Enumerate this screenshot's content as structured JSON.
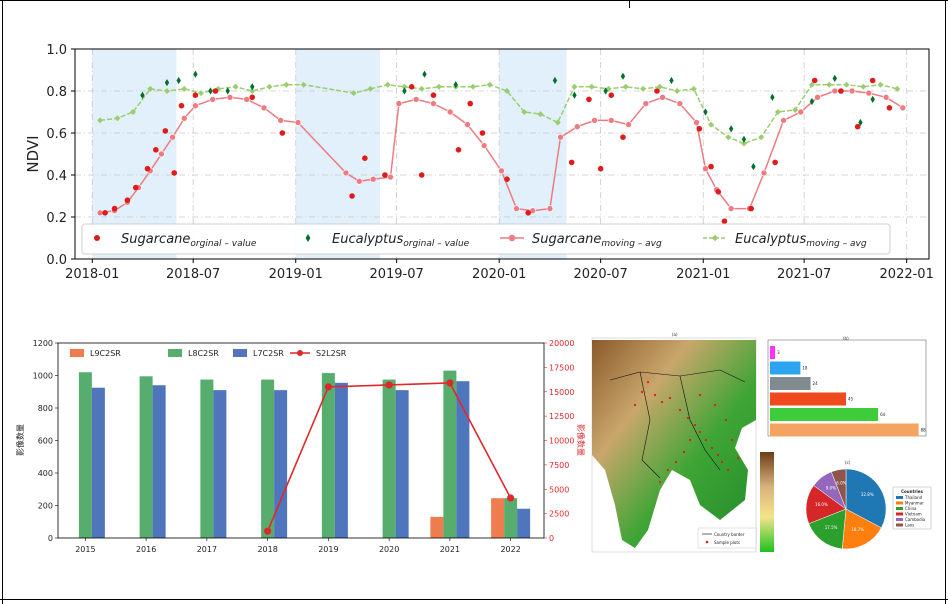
{
  "chart_data": [
    {
      "type": "line",
      "ylabel": "NDVI",
      "ylim": [
        0.0,
        1.0
      ],
      "yticks": [
        "0.0",
        "0.2",
        "0.4",
        "0.6",
        "0.8",
        "1.0"
      ],
      "xticks": [
        "2018-01",
        "2018-07",
        "2019-01",
        "2019-07",
        "2020-01",
        "2020-07",
        "2021-01",
        "2021-07",
        "2022-01"
      ],
      "grid": true,
      "legend_position": "bottom",
      "shaded_periods": [
        [
          "2018-01",
          "2018-06"
        ],
        [
          "2019-01",
          "2019-06"
        ],
        [
          "2020-01",
          "2020-05"
        ]
      ],
      "series": [
        {
          "name_main": "Sugarcane",
          "name_sub": "orginal – value",
          "marker": "circle",
          "color": "#e01b1b",
          "points": [
            [
              "2018-01-24",
              0.22
            ],
            [
              "2018-02-10",
              0.24
            ],
            [
              "2018-03-05",
              0.28
            ],
            [
              "2018-03-20",
              0.34
            ],
            [
              "2018-04-10",
              0.43
            ],
            [
              "2018-04-25",
              0.52
            ],
            [
              "2018-05-12",
              0.61
            ],
            [
              "2018-05-28",
              0.41
            ],
            [
              "2018-06-10",
              0.73
            ],
            [
              "2018-07-05",
              0.78
            ],
            [
              "2018-08-10",
              0.8
            ],
            [
              "2018-10-15",
              0.77
            ],
            [
              "2018-12-08",
              0.6
            ],
            [
              "2019-04-12",
              0.3
            ],
            [
              "2019-05-05",
              0.48
            ],
            [
              "2019-06-10",
              0.4
            ],
            [
              "2019-07-28",
              0.82
            ],
            [
              "2019-08-15",
              0.4
            ],
            [
              "2019-09-05",
              0.78
            ],
            [
              "2019-10-20",
              0.52
            ],
            [
              "2019-11-10",
              0.74
            ],
            [
              "2019-12-02",
              0.6
            ],
            [
              "2020-01-15",
              0.38
            ],
            [
              "2020-02-22",
              0.22
            ],
            [
              "2020-05-10",
              0.46
            ],
            [
              "2020-06-10",
              0.76
            ],
            [
              "2020-07-01",
              0.43
            ],
            [
              "2020-07-20",
              0.78
            ],
            [
              "2020-08-10",
              0.58
            ],
            [
              "2020-10-10",
              0.8
            ],
            [
              "2020-12-25",
              0.62
            ],
            [
              "2021-01-15",
              0.44
            ],
            [
              "2021-01-28",
              0.32
            ],
            [
              "2021-02-08",
              0.18
            ],
            [
              "2021-03-28",
              0.24
            ],
            [
              "2021-05-10",
              0.46
            ],
            [
              "2021-07-20",
              0.85
            ],
            [
              "2021-09-05",
              0.8
            ],
            [
              "2021-10-05",
              0.63
            ],
            [
              "2021-11-01",
              0.85
            ],
            [
              "2021-12-01",
              0.72
            ]
          ]
        },
        {
          "name_main": "Eucalyptus",
          "name_sub": "orginal – value",
          "marker": "diamond",
          "color": "#006f2e",
          "points": [
            [
              "2018-04-01",
              0.78
            ],
            [
              "2018-05-15",
              0.84
            ],
            [
              "2018-06-05",
              0.85
            ],
            [
              "2018-07-05",
              0.88
            ],
            [
              "2018-08-01",
              0.8
            ],
            [
              "2018-09-01",
              0.8
            ],
            [
              "2018-10-15",
              0.82
            ],
            [
              "2019-07-15",
              0.8
            ],
            [
              "2019-08-20",
              0.88
            ],
            [
              "2019-10-15",
              0.83
            ],
            [
              "2020-04-10",
              0.85
            ],
            [
              "2020-05-15",
              0.78
            ],
            [
              "2020-07-10",
              0.8
            ],
            [
              "2020-08-10",
              0.87
            ],
            [
              "2020-11-05",
              0.85
            ],
            [
              "2021-01-05",
              0.7
            ],
            [
              "2021-02-20",
              0.62
            ],
            [
              "2021-03-15",
              0.57
            ],
            [
              "2021-04-01",
              0.44
            ],
            [
              "2021-05-05",
              0.77
            ],
            [
              "2021-07-15",
              0.75
            ],
            [
              "2021-08-25",
              0.86
            ],
            [
              "2021-10-10",
              0.65
            ],
            [
              "2021-11-01",
              0.76
            ]
          ]
        },
        {
          "name_main": "Sugarcane",
          "name_sub": "moving – avg",
          "marker": "circle-line",
          "color": "#ee7b80",
          "points": [
            [
              "2018-01-15",
              0.22
            ],
            [
              "2018-02-10",
              0.23
            ],
            [
              "2018-03-05",
              0.27
            ],
            [
              "2018-03-25",
              0.34
            ],
            [
              "2018-04-15",
              0.42
            ],
            [
              "2018-05-05",
              0.5
            ],
            [
              "2018-05-25",
              0.58
            ],
            [
              "2018-06-15",
              0.67
            ],
            [
              "2018-07-05",
              0.73
            ],
            [
              "2018-08-05",
              0.76
            ],
            [
              "2018-09-05",
              0.77
            ],
            [
              "2018-10-05",
              0.76
            ],
            [
              "2018-11-05",
              0.72
            ],
            [
              "2018-12-05",
              0.66
            ],
            [
              "2019-01-05",
              0.65
            ],
            [
              "2019-04-01",
              0.41
            ],
            [
              "2019-04-25",
              0.37
            ],
            [
              "2019-05-20",
              0.38
            ],
            [
              "2019-06-20",
              0.39
            ],
            [
              "2019-07-05",
              0.74
            ],
            [
              "2019-08-05",
              0.76
            ],
            [
              "2019-09-05",
              0.74
            ],
            [
              "2019-10-05",
              0.7
            ],
            [
              "2019-11-05",
              0.64
            ],
            [
              "2019-12-05",
              0.54
            ],
            [
              "2020-01-05",
              0.42
            ],
            [
              "2020-02-01",
              0.24
            ],
            [
              "2020-03-01",
              0.23
            ],
            [
              "2020-04-01",
              0.24
            ],
            [
              "2020-04-20",
              0.58
            ],
            [
              "2020-05-20",
              0.63
            ],
            [
              "2020-06-20",
              0.66
            ],
            [
              "2020-07-20",
              0.66
            ],
            [
              "2020-08-20",
              0.64
            ],
            [
              "2020-09-20",
              0.74
            ],
            [
              "2020-10-20",
              0.77
            ],
            [
              "2020-11-20",
              0.74
            ],
            [
              "2020-12-20",
              0.65
            ],
            [
              "2021-01-05",
              0.43
            ],
            [
              "2021-01-25",
              0.33
            ],
            [
              "2021-02-20",
              0.24
            ],
            [
              "2021-03-25",
              0.24
            ],
            [
              "2021-04-20",
              0.41
            ],
            [
              "2021-05-25",
              0.66
            ],
            [
              "2021-06-25",
              0.7
            ],
            [
              "2021-07-25",
              0.77
            ],
            [
              "2021-08-25",
              0.8
            ],
            [
              "2021-09-25",
              0.8
            ],
            [
              "2021-10-25",
              0.79
            ],
            [
              "2021-11-25",
              0.77
            ],
            [
              "2021-12-25",
              0.72
            ]
          ]
        },
        {
          "name_main": "Eucalyptus",
          "name_sub": "moving – avg",
          "marker": "diamond-line",
          "color": "#9acd6d",
          "points": [
            [
              "2018-01-15",
              0.66
            ],
            [
              "2018-02-15",
              0.67
            ],
            [
              "2018-03-15",
              0.7
            ],
            [
              "2018-04-15",
              0.81
            ],
            [
              "2018-05-15",
              0.8
            ],
            [
              "2018-06-15",
              0.81
            ],
            [
              "2018-07-15",
              0.79
            ],
            [
              "2018-08-15",
              0.81
            ],
            [
              "2018-09-15",
              0.82
            ],
            [
              "2018-10-15",
              0.8
            ],
            [
              "2018-11-15",
              0.82
            ],
            [
              "2018-12-15",
              0.83
            ],
            [
              "2019-01-15",
              0.83
            ],
            [
              "2019-04-15",
              0.79
            ],
            [
              "2019-05-15",
              0.81
            ],
            [
              "2019-06-15",
              0.83
            ],
            [
              "2019-07-15",
              0.82
            ],
            [
              "2019-08-15",
              0.81
            ],
            [
              "2019-09-15",
              0.82
            ],
            [
              "2019-10-15",
              0.82
            ],
            [
              "2019-11-15",
              0.82
            ],
            [
              "2019-12-15",
              0.83
            ],
            [
              "2020-01-15",
              0.8
            ],
            [
              "2020-02-15",
              0.7
            ],
            [
              "2020-03-15",
              0.69
            ],
            [
              "2020-04-15",
              0.65
            ],
            [
              "2020-05-15",
              0.82
            ],
            [
              "2020-06-15",
              0.82
            ],
            [
              "2020-07-15",
              0.81
            ],
            [
              "2020-08-15",
              0.82
            ],
            [
              "2020-09-15",
              0.81
            ],
            [
              "2020-10-15",
              0.82
            ],
            [
              "2020-11-15",
              0.8
            ],
            [
              "2020-12-15",
              0.81
            ],
            [
              "2021-01-15",
              0.64
            ],
            [
              "2021-02-15",
              0.58
            ],
            [
              "2021-03-15",
              0.55
            ],
            [
              "2021-04-15",
              0.58
            ],
            [
              "2021-05-15",
              0.7
            ],
            [
              "2021-06-15",
              0.71
            ],
            [
              "2021-07-15",
              0.83
            ],
            [
              "2021-08-15",
              0.83
            ],
            [
              "2021-09-15",
              0.83
            ],
            [
              "2021-10-15",
              0.82
            ],
            [
              "2021-11-15",
              0.83
            ],
            [
              "2021-12-15",
              0.81
            ]
          ]
        }
      ]
    },
    {
      "type": "bar",
      "ylabel": "影像数量",
      "y2label": "影像数量",
      "ylim": [
        0,
        1200
      ],
      "y2lim": [
        0,
        20000
      ],
      "yticks": [
        "0",
        "200",
        "400",
        "600",
        "800",
        "1000",
        "1200"
      ],
      "y2ticks": [
        "0",
        "2500",
        "5000",
        "7500",
        "10000",
        "12500",
        "15000",
        "17500",
        "20000"
      ],
      "categories": [
        "2015",
        "2016",
        "2017",
        "2018",
        "2019",
        "2020",
        "2021",
        "2022"
      ],
      "legend_position": "top",
      "series": [
        {
          "name": "L9C2SR",
          "color": "#ef7c4e",
          "values": [
            0,
            0,
            0,
            0,
            0,
            0,
            130,
            245
          ]
        },
        {
          "name": "L8C2SR",
          "color": "#56ad6e",
          "values": [
            1020,
            995,
            975,
            975,
            1015,
            975,
            1030,
            245
          ]
        },
        {
          "name": "L7C2SR",
          "color": "#4f76bc",
          "values": [
            925,
            940,
            910,
            910,
            955,
            910,
            965,
            180
          ]
        },
        {
          "name": "S2L2SR",
          "color": "#e0282a",
          "axis": "right",
          "values": [
            null,
            null,
            null,
            700,
            15500,
            15700,
            15900,
            4100
          ]
        }
      ]
    },
    {
      "type": "bar",
      "orientation": "horizontal",
      "label": "(b)",
      "values": [
        3,
        18,
        24,
        45,
        64,
        88
      ],
      "colors": [
        "#ff33ff",
        "#2ca3ee",
        "#808a8f",
        "#ee4a1d",
        "#3dcc3a",
        "#f4a460"
      ]
    },
    {
      "type": "pie",
      "label": "(c)",
      "legend_title": "Countries",
      "slices": [
        {
          "label": "Thailand",
          "color": "#1f77b4",
          "value": 32.8
        },
        {
          "label": "Myanmar",
          "color": "#ff7f0e",
          "value": 18.7
        },
        {
          "label": "China",
          "color": "#2ca02c",
          "value": 17.5
        },
        {
          "label": "Vietnam",
          "color": "#d62728",
          "value": 16.0
        },
        {
          "label": "Cambodia",
          "color": "#9467bd",
          "value": 9.0
        },
        {
          "label": "Laos",
          "color": "#8c564b",
          "value": 6.0
        }
      ]
    }
  ],
  "map": {
    "label": "(a)",
    "legend": [
      "Country border",
      "Sample plots"
    ]
  }
}
